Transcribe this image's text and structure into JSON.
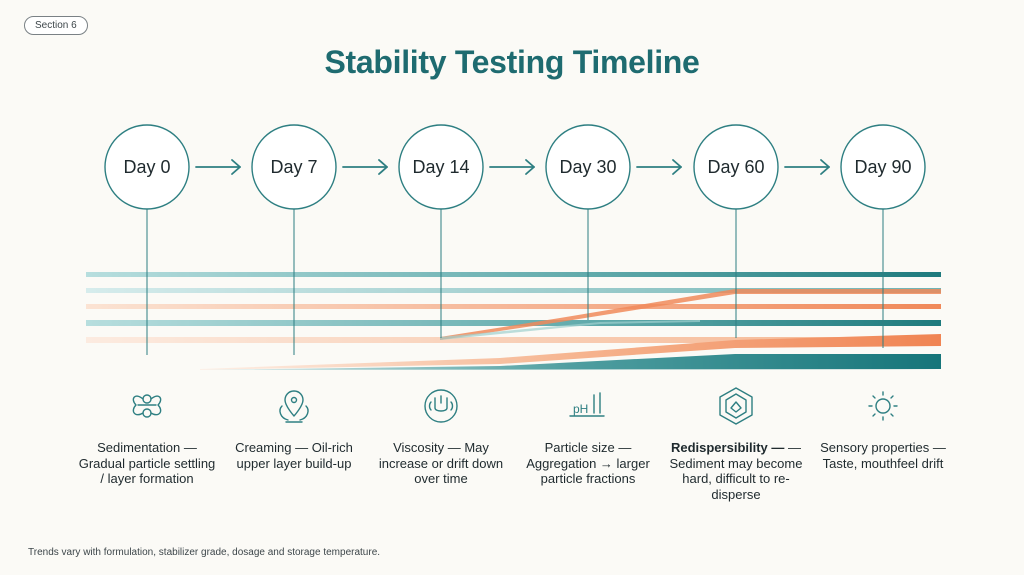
{
  "section_label": "Section 6",
  "title": "Stability Testing Timeline",
  "milestones": [
    {
      "label": "Day 0",
      "icon": "sedimentation-icon",
      "heading": "Sedimentation —",
      "text": "Gradual particle settling / layer formation",
      "bold": false
    },
    {
      "label": "Day 7",
      "icon": "creaming-icon",
      "heading": "Creaming —",
      "text": "Oil-rich upper layer build-up",
      "bold": false
    },
    {
      "label": "Day 14",
      "icon": "viscosity-icon",
      "heading": "Viscosity — May",
      "text": "increase or drift down over time",
      "bold": false
    },
    {
      "label": "Day 30",
      "icon": "ph-icon",
      "heading": "Particle size —",
      "text": "Aggregation → larger particle fractions",
      "bold": false
    },
    {
      "label": "Day 60",
      "icon": "redispersibility-icon",
      "heading": "Redispersibility —",
      "text": "— Sediment may become hard, difficult to re-disperse",
      "bold": true
    },
    {
      "label": "Day 90",
      "icon": "sun-icon",
      "heading": "Sensory properties",
      "text": "— Taste, mouthfeel drift",
      "bold": false
    }
  ],
  "footnote": "Trends vary with formulation, stabilizer grade, dosage and storage temperature.",
  "colors": {
    "teal": "#1e7a7d",
    "light_teal": "#9fd0cf",
    "orange": "#f0895a",
    "light_orange": "#f7c7a8",
    "text": "#1f2a2e"
  }
}
